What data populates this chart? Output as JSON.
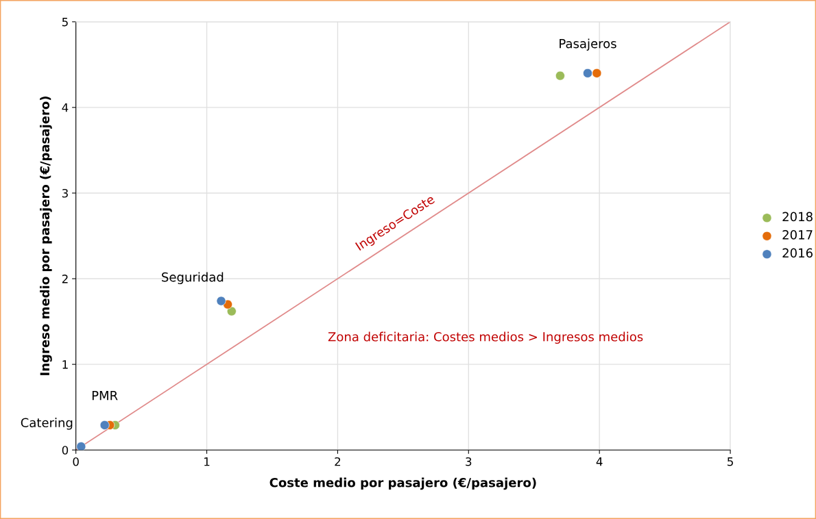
{
  "chart_data": {
    "type": "scatter",
    "xlabel": "Coste medio por pasajero (€/pasajero)",
    "ylabel": "Ingreso medio por pasajero (€/pasajero)",
    "xlim": [
      0,
      5
    ],
    "ylim": [
      0,
      5
    ],
    "xticks": [
      0,
      1,
      2,
      3,
      4,
      5
    ],
    "yticks": [
      0,
      1,
      2,
      3,
      4,
      5
    ],
    "grid": true,
    "legend": "right",
    "marker": "circle",
    "series": [
      {
        "name": "2018",
        "color": "#9bbb59",
        "x": [
          3.7,
          1.19,
          0.3,
          null
        ],
        "values": [
          4.37,
          1.62,
          0.29,
          null
        ]
      },
      {
        "name": "2017",
        "color": "#e46c0a",
        "x": [
          3.98,
          1.16,
          0.26,
          null
        ],
        "values": [
          4.4,
          1.7,
          0.29,
          null
        ]
      },
      {
        "name": "2016",
        "color": "#4f81bd",
        "x": [
          3.91,
          1.11,
          0.22,
          0.04
        ],
        "values": [
          4.4,
          1.74,
          0.29,
          0.04
        ]
      },
      {
        "type": "line",
        "color": "#e08a8a",
        "marker": "none",
        "x": [
          0,
          5
        ],
        "values": [
          0,
          5
        ]
      }
    ],
    "annotations": [
      {
        "text": "Pasajeros",
        "x": 3.91,
        "y": 4.4
      },
      {
        "text": "Seguridad",
        "x": 1.11,
        "y": 1.74
      },
      {
        "text": "PMR",
        "x": 0.22,
        "y": 0.29
      },
      {
        "text": "Catering",
        "x": 0.04,
        "y": 0.04
      },
      {
        "text": "Ingreso=Coste",
        "x": 2.5,
        "y": 2.5
      },
      "Zona deficitaria: Costes medios > Ingresos medios"
    ]
  }
}
